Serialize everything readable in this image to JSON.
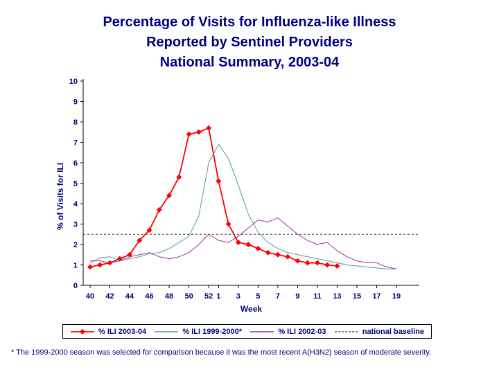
{
  "title": {
    "line1": "Percentage of Visits for Influenza-like Illness",
    "line2": "Reported by Sentinel Providers",
    "line3": "National Summary, 2003-04"
  },
  "footnote": "* The 1999-2000 season was selected for comparison because it was the most recent A(H3N2) season of moderate severity.",
  "colors": {
    "text_navy": "#000080",
    "axis": "#000000"
  },
  "chart_data": {
    "type": "line",
    "title_lines": [
      "Percentage of Visits for Influenza-like Illness",
      "Reported by Sentinel Providers",
      "National Summary, 2003-04"
    ],
    "xlabel": "Week",
    "ylabel": "% of Visits for ILI",
    "ylim": [
      0,
      10
    ],
    "y_ticks": [
      0,
      1,
      2,
      3,
      4,
      5,
      6,
      7,
      8,
      9,
      10
    ],
    "grid": false,
    "legend_position": "bottom",
    "weeks": [
      40,
      41,
      42,
      43,
      44,
      45,
      46,
      47,
      48,
      49,
      50,
      51,
      52,
      1,
      2,
      3,
      4,
      5,
      6,
      7,
      8,
      9,
      10,
      11,
      12,
      13,
      14,
      15,
      16,
      17,
      18,
      19
    ],
    "x_ticks": [
      {
        "i": 0,
        "label": "40"
      },
      {
        "i": 2,
        "label": "42"
      },
      {
        "i": 4,
        "label": "44"
      },
      {
        "i": 6,
        "label": "46"
      },
      {
        "i": 8,
        "label": "48"
      },
      {
        "i": 10,
        "label": "50"
      },
      {
        "i": 12,
        "label": "52"
      },
      {
        "i": 13,
        "label": "1"
      },
      {
        "i": 15,
        "label": "3"
      },
      {
        "i": 17,
        "label": "5"
      },
      {
        "i": 19,
        "label": "7"
      },
      {
        "i": 21,
        "label": "9"
      },
      {
        "i": 23,
        "label": "11"
      },
      {
        "i": 25,
        "label": "13"
      },
      {
        "i": 27,
        "label": "15"
      },
      {
        "i": 29,
        "label": "17"
      },
      {
        "i": 31,
        "label": "19"
      }
    ],
    "series": [
      {
        "name": "% ILI 2003-04",
        "color": "#FF0000",
        "marker": "diamond",
        "width": 1.8,
        "values": [
          0.9,
          1.0,
          1.1,
          1.3,
          1.5,
          2.2,
          2.7,
          3.7,
          4.4,
          5.3,
          7.4,
          7.5,
          7.7,
          5.1,
          3.0,
          2.1,
          2.0,
          1.8,
          1.6,
          1.5,
          1.4,
          1.2,
          1.1,
          1.1,
          1.0,
          0.95
        ]
      },
      {
        "name": "% ILI 1999-2000*",
        "color": "#4D9B9B",
        "marker": "none",
        "width": 1,
        "values": [
          1.1,
          1.35,
          1.4,
          1.2,
          1.3,
          1.4,
          1.55,
          1.6,
          1.8,
          2.1,
          2.4,
          3.4,
          6.0,
          6.9,
          6.2,
          4.9,
          3.5,
          2.6,
          2.1,
          1.8,
          1.6,
          1.5,
          1.4,
          1.3,
          1.2,
          1.1,
          1.0,
          0.95,
          0.9,
          0.85,
          0.8,
          0.8
        ]
      },
      {
        "name": "% ILI 2002-03",
        "color": "#993399",
        "marker": "none",
        "width": 1,
        "values": [
          1.2,
          1.2,
          1.1,
          1.2,
          1.4,
          1.5,
          1.6,
          1.4,
          1.3,
          1.4,
          1.6,
          2.0,
          2.5,
          2.2,
          2.1,
          2.4,
          2.8,
          3.2,
          3.1,
          3.3,
          2.9,
          2.5,
          2.2,
          2.0,
          2.1,
          1.7,
          1.4,
          1.2,
          1.1,
          1.1,
          0.9,
          0.8
        ]
      }
    ],
    "baseline": {
      "name": "national baseline",
      "value": 2.5,
      "style": "dashed",
      "color": "#333333"
    }
  }
}
